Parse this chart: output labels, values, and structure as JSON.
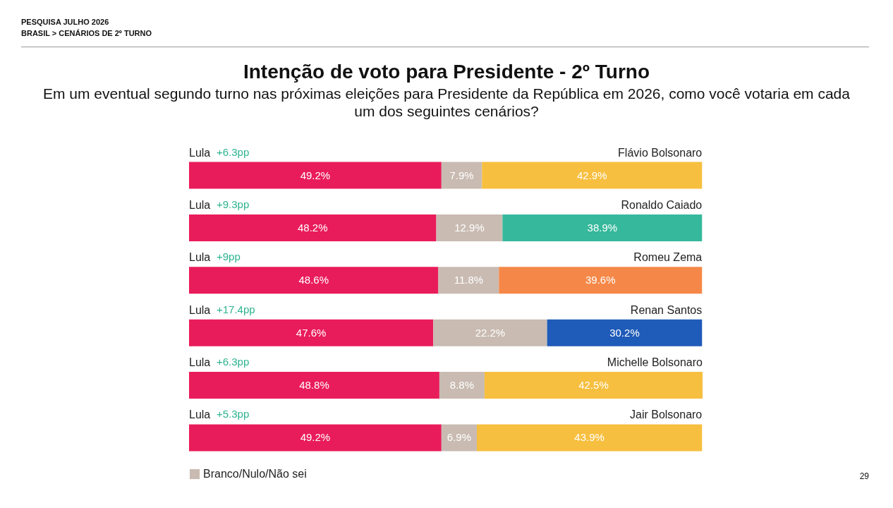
{
  "chart_data": {
    "type": "bar",
    "orientation": "horizontal",
    "stacked": true,
    "title": "Intenção de voto para Presidente - 2º Turno",
    "subtitle": "Em um eventual segundo turno nas próximas eleições para Presidente da República em 2026, como você votaria em cada um dos seguintes cenários?",
    "categories": [
      "Flávio Bolsonaro",
      "Ronaldo Caiado",
      "Romeu Zema",
      "Renan Santos",
      "Michelle Bolsonaro",
      "Jair Bolsonaro"
    ],
    "series": [
      {
        "name": "Lula",
        "color": "#e91c5b",
        "values": [
          49.2,
          48.2,
          48.6,
          47.6,
          48.8,
          49.2
        ],
        "value_labels": [
          "49.2%",
          "48.2%",
          "48.6%",
          "47.6%",
          "48.8%",
          "49.2%"
        ]
      },
      {
        "name": "Branco/Nulo/Não sei",
        "color": "#c9bbb2",
        "values": [
          7.9,
          12.9,
          11.8,
          22.2,
          8.8,
          6.9
        ],
        "value_labels": [
          "7.9%",
          "12.9%",
          "11.8%",
          "22.2%",
          "8.8%",
          "6.9%"
        ]
      },
      {
        "colors": [
          "#f7bf3f",
          "#35b89b",
          "#f58848",
          "#1f5bb8",
          "#f7bf3f",
          "#f7bf3f"
        ],
        "values": [
          42.9,
          38.9,
          39.6,
          30.2,
          42.5,
          43.9
        ],
        "value_labels": [
          "42.9%",
          "38.9%",
          "39.6%",
          "30.2%",
          "42.5%",
          "43.9%"
        ]
      }
    ],
    "legend": "bottom",
    "annotations": [
      "PESQUISA JULHO 2026",
      "BRASIL > CENÁRIOS DE 2º TURNO",
      "29",
      "+6.3pp",
      "+9.3pp",
      "+9pp",
      "+17.4pp",
      "+6.3pp",
      "+5.3pp"
    ]
  }
}
